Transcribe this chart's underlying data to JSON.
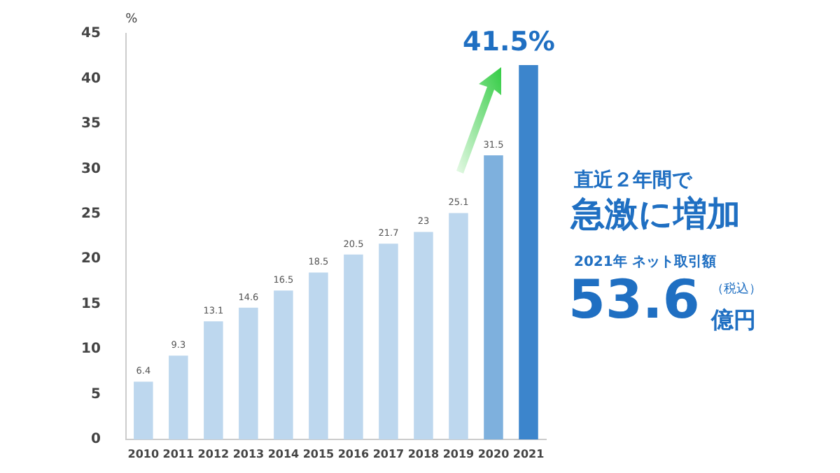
{
  "chart_data": {
    "type": "bar",
    "ylabel": "%",
    "categories": [
      "2010",
      "2011",
      "2012",
      "2013",
      "2014",
      "2015",
      "2016",
      "2017",
      "2018",
      "2019",
      "2020",
      "2021"
    ],
    "values": [
      6.4,
      9.3,
      13.1,
      14.6,
      16.5,
      18.5,
      20.5,
      21.7,
      23,
      25.1,
      31.5,
      41.5
    ],
    "colors": [
      "#bdd7ee",
      "#bdd7ee",
      "#bdd7ee",
      "#bdd7ee",
      "#bdd7ee",
      "#bdd7ee",
      "#bdd7ee",
      "#bdd7ee",
      "#bdd7ee",
      "#bdd7ee",
      "#7eb0dd",
      "#3c85cc"
    ],
    "value_labels": [
      "6.4",
      "9.3",
      "13.1",
      "14.6",
      "16.5",
      "18.5",
      "20.5",
      "21.7",
      "23",
      "25.1",
      "31.5",
      "41.5%"
    ],
    "ylim": [
      0,
      45
    ],
    "yticks": [
      0,
      5,
      10,
      15,
      20,
      25,
      30,
      35,
      40,
      45
    ],
    "grid": false,
    "annotations": [
      "直近２年間で",
      "急激に増加",
      "2021年 ネット取引額",
      "53.6",
      "（税込）",
      "億円"
    ]
  }
}
